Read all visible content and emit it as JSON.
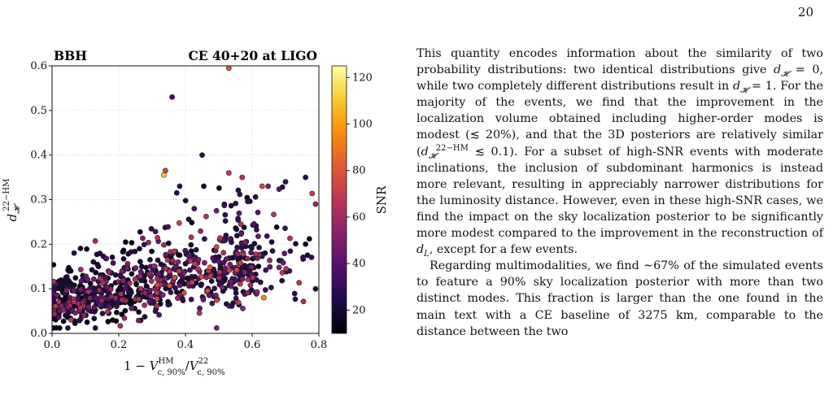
{
  "page": {
    "number": "20"
  },
  "figure": {
    "panel_label": "BBH",
    "panel_title": "CE 40+20 at LIGO",
    "xlabel_html": "1 − <tspan font-style=\"italic\">V</tspan>",
    "colorbar_label": "SNR",
    "colormap": [
      "#000004",
      "#1f0c48",
      "#550f6d",
      "#88226a",
      "#ba3655",
      "#e35933",
      "#f98e09",
      "#f8c931",
      "#fcffa4"
    ]
  },
  "chart_data": {
    "type": "scatter",
    "title": "CE 40+20 at LIGO",
    "panel_label": "BBH",
    "xlabel": "1 − V_{c,90%}^{HM} / V_{c,90%}^{22}",
    "ylabel": "d_H^{22−HM}",
    "xlim": [
      0.0,
      0.8
    ],
    "ylim": [
      0.0,
      0.6
    ],
    "xticks": [
      "0.0",
      "0.2",
      "0.4",
      "0.6",
      "0.8"
    ],
    "yticks": [
      "0.0",
      "0.1",
      "0.2",
      "0.3",
      "0.4",
      "0.5",
      "0.6"
    ],
    "grid": true,
    "colorbar": {
      "label": "SNR",
      "range": [
        10,
        125
      ],
      "ticks": [
        "20",
        "40",
        "60",
        "80",
        "100",
        "120"
      ]
    },
    "notable_points": [
      {
        "x": 0.53,
        "y": 0.595,
        "snr": 80
      },
      {
        "x": 0.36,
        "y": 0.53,
        "snr": 35
      },
      {
        "x": 0.45,
        "y": 0.4,
        "snr": 30
      },
      {
        "x": 0.34,
        "y": 0.365,
        "snr": 75
      },
      {
        "x": 0.335,
        "y": 0.355,
        "snr": 110
      },
      {
        "x": 0.53,
        "y": 0.36,
        "snr": 70
      },
      {
        "x": 0.57,
        "y": 0.35,
        "snr": 65
      },
      {
        "x": 0.63,
        "y": 0.33,
        "snr": 75
      },
      {
        "x": 0.7,
        "y": 0.34,
        "snr": 30
      },
      {
        "x": 0.76,
        "y": 0.35,
        "snr": 25
      },
      {
        "x": 0.79,
        "y": 0.29,
        "snr": 55
      },
      {
        "x": 0.76,
        "y": 0.2,
        "snr": 20
      },
      {
        "x": 0.79,
        "y": 0.1,
        "snr": 20
      },
      {
        "x": 0.635,
        "y": 0.08,
        "snr": 95
      }
    ],
    "bulk": {
      "description": "about 900 events dense at low x and d_H 0.04–0.2, spreading to higher d_H at larger x",
      "count": 900
    }
  },
  "text": {
    "paragraphs_html": [
      "This quantity encodes information about the similarity of two probability distributions: two identical distributions give <span class=\"math\">d</span><sub><span class=\"math\">𝓗</span></sub> = 0, while two completely different distributions result in <span class=\"math\">d</span><sub><span class=\"math\">𝓗</span></sub> = 1. For the majority of the events, we find that the improvement in the localization volume obtained including higher-order modes is modest (≲ 20%), and that the 3D posteriors are relatively similar (<span class=\"math\">d</span><sub><span class=\"math\">𝓗</span></sub><sup>22−HM</sup> ≲ 0.1). For a subset of high-SNR events with moderate inclinations, the inclusion of subdominant harmonics is instead more relevant, resulting in appreciably narrower distributions for the luminosity distance. However, even in these high-SNR cases, we find the impact on the sky localization posterior to be significantly more modest compared to the improvement in the reconstruction of <span class=\"math\">d</span><sub><span class=\"math\">L</span></sub>, except for a few events.",
      "Regarding multimodalities, we find ∼67% of the simulated events to feature a 90% sky localization posterior with more than two distinct modes. This fraction is larger than the one found in the main text with a CE baseline of 3275 km, comparable to the distance between the two"
    ]
  }
}
